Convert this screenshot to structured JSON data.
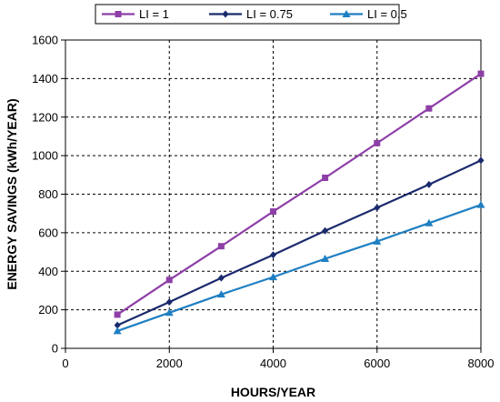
{
  "chart_data": {
    "type": "line",
    "xlabel": "HOURS/YEAR",
    "ylabel": "ENERGY SAVINGS (kWh/YEAR)",
    "xlim": [
      0,
      8000
    ],
    "ylim": [
      0,
      1600
    ],
    "x_ticks": [
      "0",
      "2000",
      "4000",
      "6000",
      "8000"
    ],
    "y_ticks": [
      "0",
      "200",
      "400",
      "600",
      "800",
      "1000",
      "1200",
      "1400",
      "1600"
    ],
    "grid": true,
    "legend_position": "top",
    "x": [
      1000,
      2000,
      3000,
      4000,
      5000,
      6000,
      7000,
      8000
    ],
    "series": [
      {
        "name": "LI = 1",
        "color": "#8e3fa7",
        "marker": "square",
        "values": [
          175,
          355,
          530,
          710,
          885,
          1065,
          1245,
          1425
        ]
      },
      {
        "name": "LI = 0.75",
        "color": "#1a2a6c",
        "marker": "diamond",
        "values": [
          120,
          240,
          365,
          485,
          610,
          730,
          850,
          975
        ]
      },
      {
        "name": "LI = 0.5",
        "color": "#1f7fc2",
        "marker": "triangle",
        "values": [
          90,
          185,
          280,
          370,
          465,
          555,
          650,
          745
        ]
      }
    ]
  }
}
